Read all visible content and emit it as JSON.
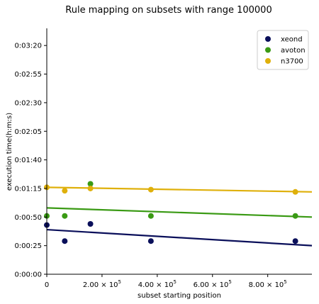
{
  "chart_data": {
    "type": "scatter",
    "title": "Rule mapping on subsets with range 100000",
    "xlabel": "subset starting position",
    "ylabel": "execution time(h:m:s)",
    "xlim": [
      0,
      960000
    ],
    "ylim": [
      0,
      215
    ],
    "x_ticks": [
      {
        "value": 0,
        "label": "0"
      },
      {
        "value": 200000,
        "label": "2.00 × 10^5"
      },
      {
        "value": 400000,
        "label": "4.00 × 10^5"
      },
      {
        "value": 600000,
        "label": "6.00 × 10^5"
      },
      {
        "value": 800000,
        "label": "8.00 × 10^5"
      }
    ],
    "y_ticks": [
      {
        "value": 0,
        "label": "0:00:00"
      },
      {
        "value": 25,
        "label": "0:00:25"
      },
      {
        "value": 50,
        "label": "0:00:50"
      },
      {
        "value": 75,
        "label": "0:01:15"
      },
      {
        "value": 100,
        "label": "0:01:40"
      },
      {
        "value": 125,
        "label": "0:02:05"
      },
      {
        "value": 150,
        "label": "0:02:30"
      },
      {
        "value": 175,
        "label": "0:02:55"
      },
      {
        "value": 200,
        "label": "0:03:20"
      }
    ],
    "legend_position": "top-right",
    "grid": false,
    "series": [
      {
        "name": "xeond",
        "color": "#0a0f5a",
        "points": [
          [
            0,
            43
          ],
          [
            65000,
            29
          ],
          [
            158000,
            44
          ],
          [
            377000,
            29
          ],
          [
            900000,
            29
          ]
        ],
        "trend": [
          [
            0,
            39
          ],
          [
            960000,
            25
          ]
        ]
      },
      {
        "name": "avoton",
        "color": "#3a9a14",
        "points": [
          [
            0,
            51
          ],
          [
            65000,
            51
          ],
          [
            158000,
            79
          ],
          [
            377000,
            51
          ],
          [
            900000,
            51
          ]
        ],
        "trend": [
          [
            0,
            58
          ],
          [
            960000,
            50
          ]
        ]
      },
      {
        "name": "n3700",
        "color": "#dfb00b",
        "points": [
          [
            0,
            76
          ],
          [
            65000,
            73
          ],
          [
            158000,
            75
          ],
          [
            377000,
            74
          ],
          [
            900000,
            72
          ]
        ],
        "trend": [
          [
            0,
            76
          ],
          [
            960000,
            72
          ]
        ]
      }
    ]
  }
}
